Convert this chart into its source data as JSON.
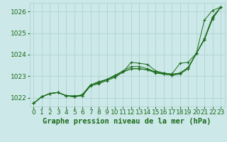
{
  "title": "Graphe pression niveau de la mer (hPa)",
  "bg_color": "#cce8e8",
  "grid_color": "#aacfcf",
  "line_color": "#1a6b1a",
  "xlim": [
    -0.5,
    23.5
  ],
  "ylim": [
    1021.6,
    1026.4
  ],
  "yticks": [
    1022,
    1023,
    1024,
    1025,
    1026
  ],
  "xticks": [
    0,
    1,
    2,
    3,
    4,
    5,
    6,
    7,
    8,
    9,
    10,
    11,
    12,
    13,
    14,
    15,
    16,
    17,
    18,
    19,
    20,
    21,
    22,
    23
  ],
  "line1": [
    1021.75,
    1022.05,
    1022.2,
    1022.25,
    1022.1,
    1022.05,
    1022.1,
    1022.55,
    1022.65,
    1022.8,
    1022.95,
    1023.2,
    1023.65,
    1023.6,
    1023.55,
    1023.25,
    1023.15,
    1023.1,
    1023.6,
    1023.65,
    1024.05,
    1025.6,
    1026.05,
    1026.2
  ],
  "line2": [
    1021.75,
    1022.05,
    1022.2,
    1022.25,
    1022.1,
    1022.05,
    1022.15,
    1022.6,
    1022.75,
    1022.85,
    1023.05,
    1023.25,
    1023.45,
    1023.45,
    1023.35,
    1023.2,
    1023.15,
    1023.1,
    1023.15,
    1023.4,
    1024.05,
    1024.75,
    1025.75,
    1026.2
  ],
  "line3": [
    1021.75,
    1022.05,
    1022.2,
    1022.25,
    1022.1,
    1022.05,
    1022.15,
    1022.6,
    1022.7,
    1022.85,
    1023.0,
    1023.2,
    1023.35,
    1023.35,
    1023.3,
    1023.2,
    1023.1,
    1023.05,
    1023.1,
    1023.35,
    1024.05,
    1024.7,
    1025.7,
    1026.2
  ],
  "line4": [
    1021.75,
    1022.05,
    1022.2,
    1022.25,
    1022.1,
    1022.1,
    1022.1,
    1022.6,
    1022.7,
    1022.85,
    1023.0,
    1023.2,
    1023.35,
    1023.35,
    1023.3,
    1023.15,
    1023.1,
    1023.05,
    1023.15,
    1023.4,
    1024.05,
    1024.7,
    1025.65,
    1026.2
  ],
  "title_fontsize": 7.5,
  "tick_fontsize": 6.5
}
